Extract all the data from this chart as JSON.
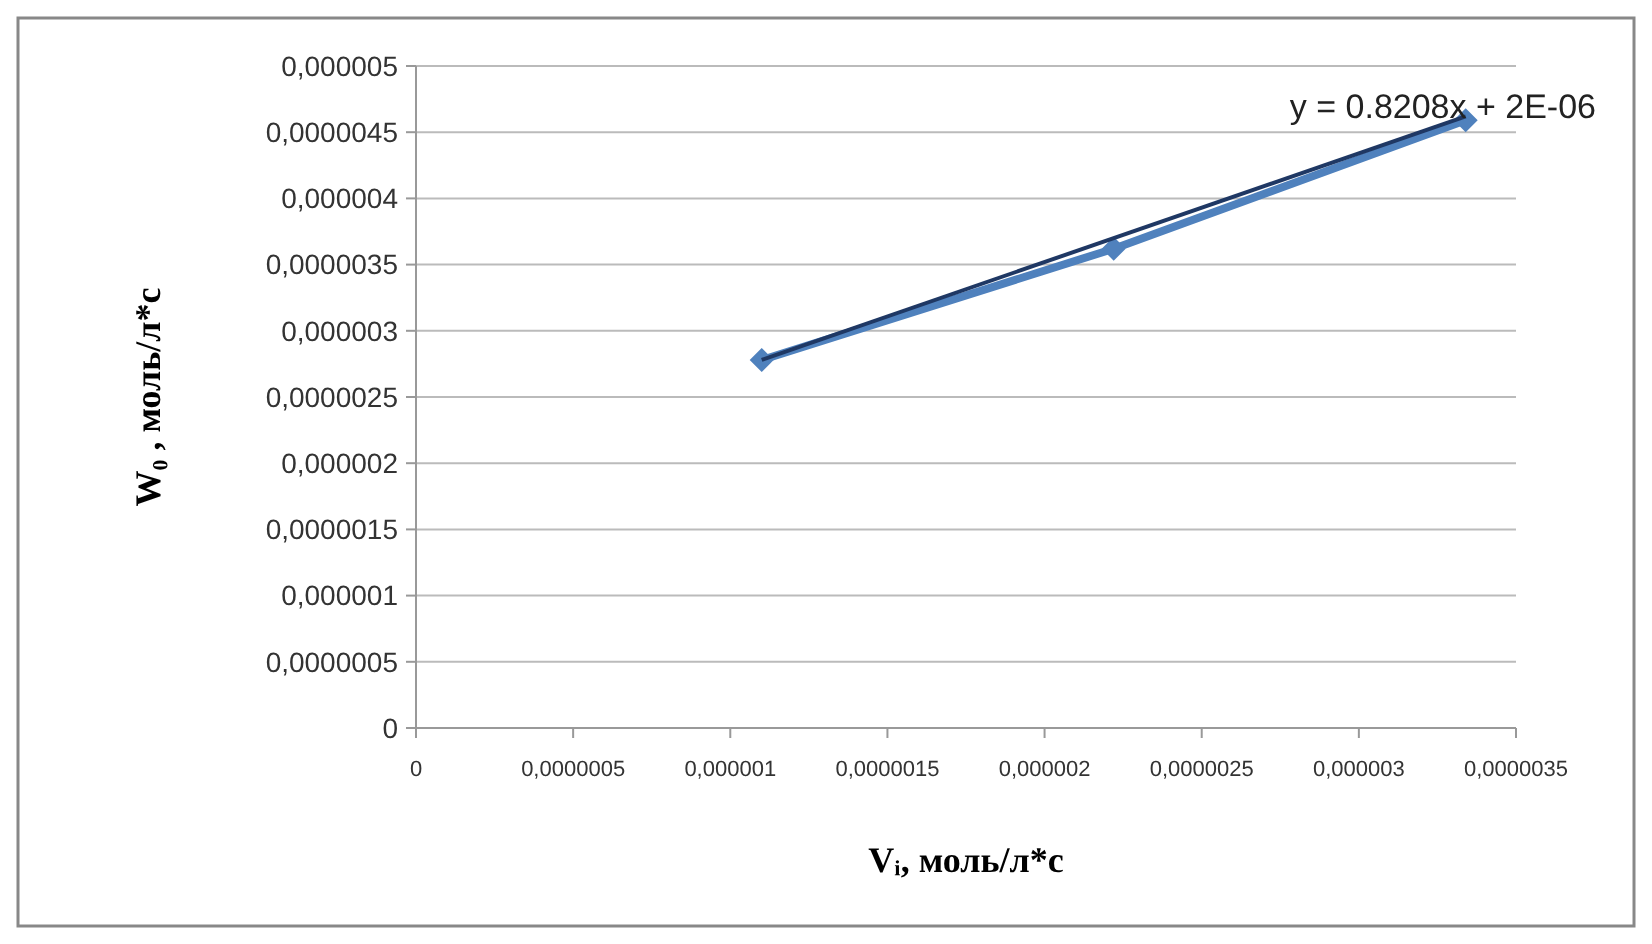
{
  "chart_data": {
    "type": "line",
    "xlabel": "Vᵢ, моль/л*с",
    "ylabel": "W₀ , моль/л*с",
    "xlim": [
      0,
      3.5e-06
    ],
    "ylim": [
      0,
      5e-06
    ],
    "xticks": [
      0,
      {
        "value": 5e-07,
        "label": "0,0000005"
      },
      {
        "value": 1e-06,
        "label": "0,000001"
      },
      {
        "value": 1.5e-06,
        "label": "0,0000015"
      },
      {
        "value": 2e-06,
        "label": "0,000002"
      },
      {
        "value": 2.5e-06,
        "label": "0,0000025"
      },
      {
        "value": 3e-06,
        "label": "0,000003"
      },
      {
        "value": 3.5e-06,
        "label": "0,0000035"
      }
    ],
    "yticks": [
      0,
      {
        "value": 5e-07,
        "label": "0,0000005"
      },
      {
        "value": 1e-06,
        "label": "0,000001"
      },
      {
        "value": 1.5e-06,
        "label": "0,0000015"
      },
      {
        "value": 2e-06,
        "label": "0,000002"
      },
      {
        "value": 2.5e-06,
        "label": "0,0000025"
      },
      {
        "value": 3e-06,
        "label": "0,000003"
      },
      {
        "value": 3.5e-06,
        "label": "0,0000035"
      },
      {
        "value": 4e-06,
        "label": "0,000004"
      },
      {
        "value": 4.5e-06,
        "label": "0,0000045"
      },
      {
        "value": 5e-06,
        "label": "0,000005"
      }
    ],
    "series": [
      {
        "color": "#4f81bd",
        "x": [
          1.1e-06,
          2.22e-06,
          3.34e-06
        ],
        "values": [
          2.78e-06,
          3.62e-06,
          4.59e-06
        ],
        "marker": "diamond"
      },
      {
        "type": "line",
        "color": "#1f3864",
        "x": [
          1.1e-06,
          3.34e-06
        ],
        "values": [
          2.78e-06,
          4.62e-06
        ],
        "marker": "none"
      }
    ],
    "annotations": [
      "y = 0.8208x + 2E-06"
    ],
    "grid": "y"
  }
}
